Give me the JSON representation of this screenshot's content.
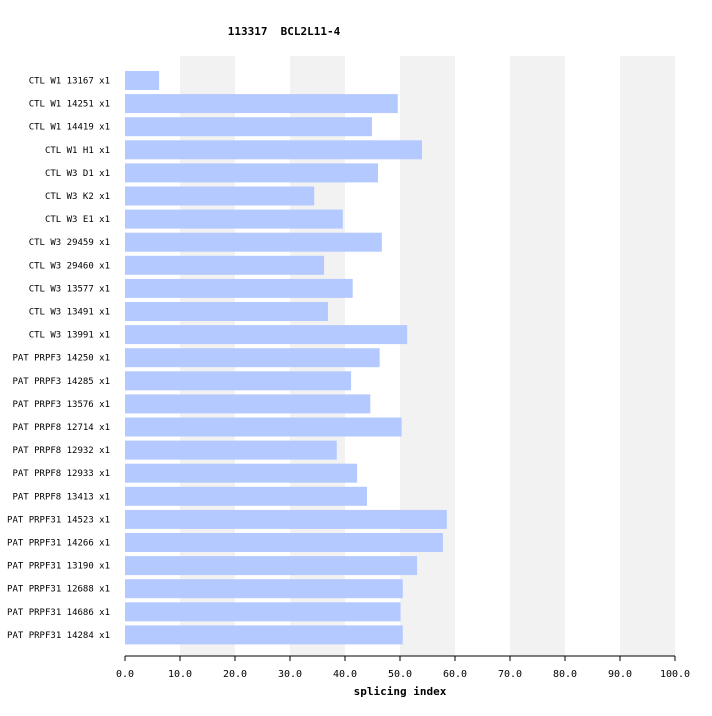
{
  "chart_data": {
    "type": "bar",
    "orientation": "horizontal",
    "title": "113317  BCL2L11-4",
    "xlabel": "splicing index",
    "xlim": [
      0,
      100
    ],
    "xticks": [
      "0.0",
      "10.0",
      "20.0",
      "30.0",
      "40.0",
      "50.0",
      "60.0",
      "70.0",
      "80.0",
      "90.0",
      "100.0"
    ],
    "categories": [
      "CTL W1 13167 x1",
      "CTL W1 14251 x1",
      "CTL W1 14419 x1",
      "CTL W1 H1 x1",
      "CTL W3 D1 x1",
      "CTL W3 K2 x1",
      "CTL W3 E1 x1",
      "CTL W3 29459 x1",
      "CTL W3 29460 x1",
      "CTL W3 13577 x1",
      "CTL W3 13491 x1",
      "CTL W3 13991 x1",
      "PAT PRPF3 14250 x1",
      "PAT PRPF3 14285 x1",
      "PAT PRPF3 13576 x1",
      "PAT PRPF8 12714 x1",
      "PAT PRPF8 12932 x1",
      "PAT PRPF8 12933 x1",
      "PAT PRPF8 13413 x1",
      "PAT PRPF31 14523 x1",
      "PAT PRPF31 14266 x1",
      "PAT PRPF31 13190 x1",
      "PAT PRPF31 12688 x1",
      "PAT PRPF31 14686 x1",
      "PAT PRPF31 14284 x1"
    ],
    "values": [
      6.2,
      49.6,
      44.9,
      54.0,
      46.0,
      34.4,
      39.6,
      46.7,
      36.2,
      41.4,
      36.9,
      51.3,
      46.3,
      41.1,
      44.6,
      50.3,
      38.5,
      42.2,
      44.0,
      58.5,
      57.8,
      53.1,
      50.5,
      50.1,
      50.5
    ],
    "bar_color": "#b3c9ff",
    "band_color": "#f2f2f2",
    "grid": "alternating vertical bands"
  }
}
